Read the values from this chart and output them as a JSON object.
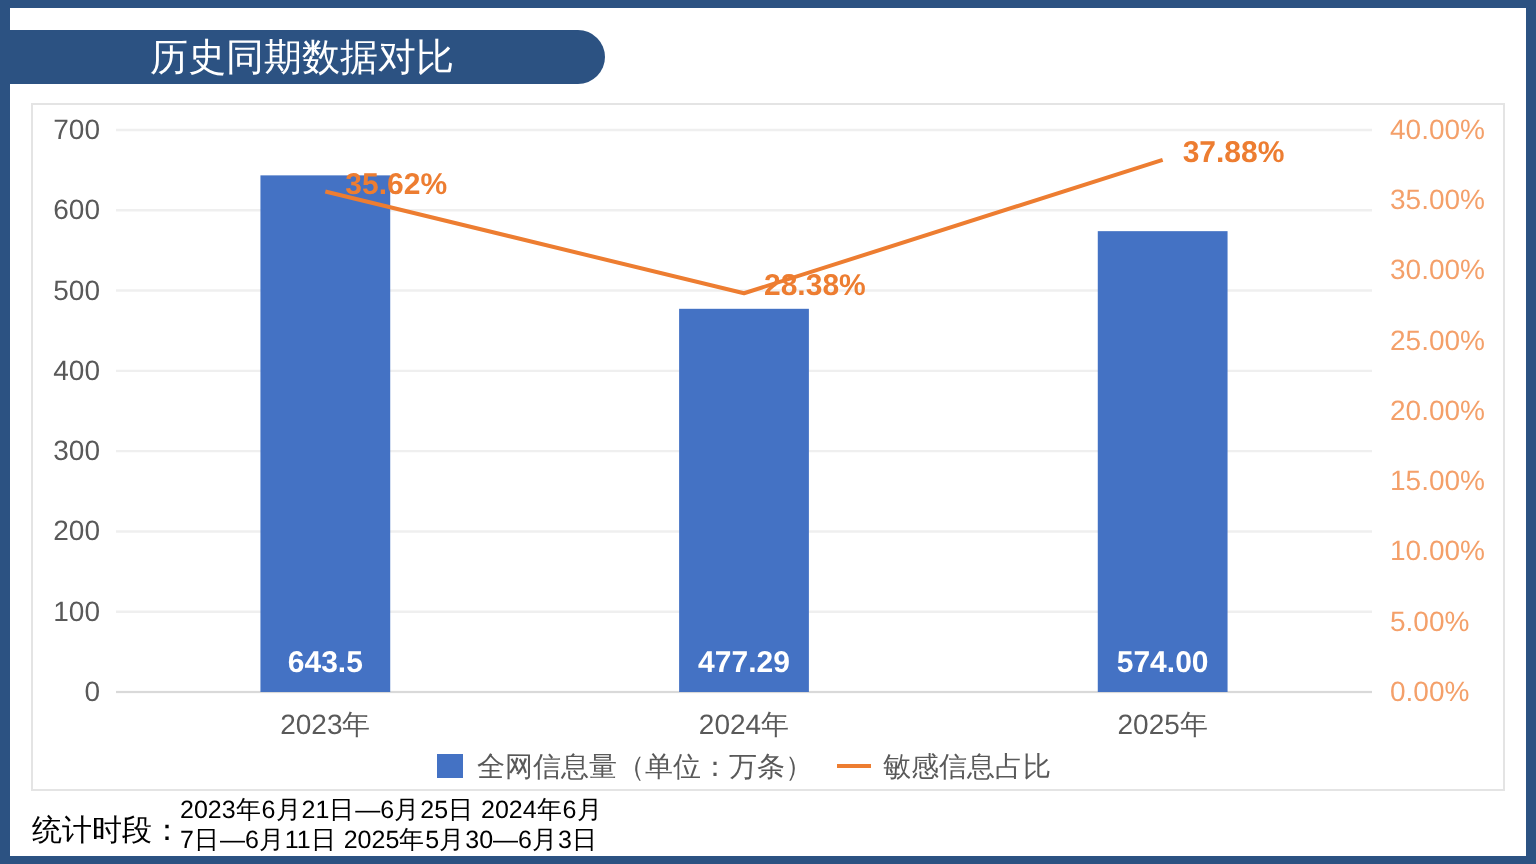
{
  "chart_data": {
    "type": "bar",
    "title": "历史同期数据对比",
    "categories": [
      "2023年",
      "2024年",
      "2025年"
    ],
    "series": [
      {
        "name": "全网信息量（单位：万条）",
        "type": "bar",
        "color": "#4472c4",
        "values": [
          643.5,
          477.29,
          574.0
        ],
        "value_labels": [
          "643.5",
          "477.29",
          "574.00"
        ]
      },
      {
        "name": "敏感信息占比",
        "type": "line",
        "axis": "y2",
        "color": "#ed7d31",
        "values": [
          35.62,
          28.38,
          37.88
        ],
        "value_labels": [
          "35.62%",
          "28.38%",
          "37.88%"
        ]
      }
    ],
    "ylim": [
      0,
      700
    ],
    "yticks": [
      0,
      100,
      200,
      300,
      400,
      500,
      600,
      700
    ],
    "y2lim": [
      0,
      40
    ],
    "y2ticks": [
      {
        "value": 0,
        "label": "0.00%"
      },
      {
        "value": 5,
        "label": "5.00%"
      },
      {
        "value": 10,
        "label": "10.00%"
      },
      {
        "value": 15,
        "label": "15.00%"
      },
      {
        "value": 20,
        "label": "20.00%"
      },
      {
        "value": 25,
        "label": "25.00%"
      },
      {
        "value": 30,
        "label": "30.00%"
      },
      {
        "value": 35,
        "label": "35.00%"
      },
      {
        "value": 40,
        "label": "40.00%"
      }
    ],
    "grid": "y",
    "legend": "bottom",
    "marker": "none",
    "line_style": "solid",
    "annotations": [
      "统计时段：",
      "2023年6月21日—6月25日 2024年6月7日—6月11日 2025年5月30—6月3日"
    ]
  }
}
